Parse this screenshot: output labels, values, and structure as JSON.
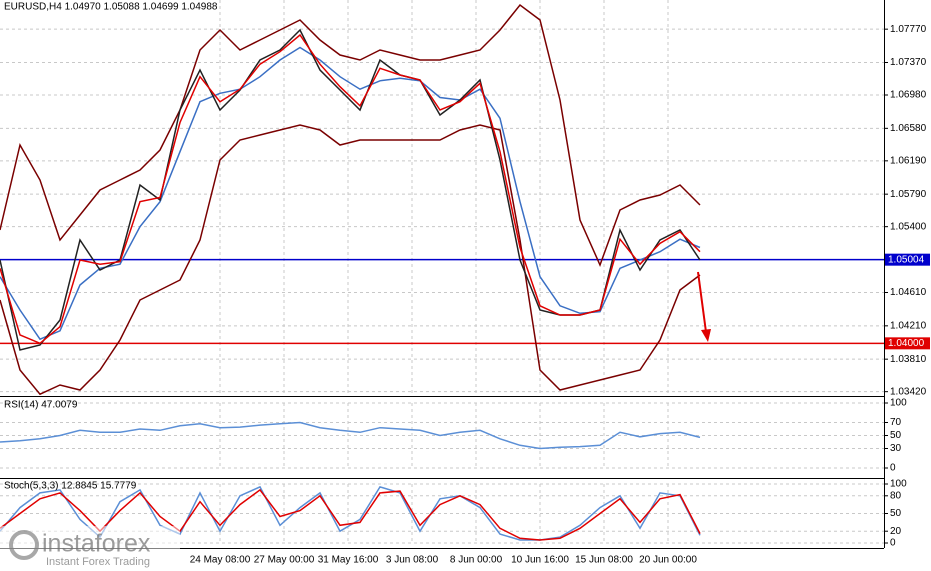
{
  "chart_data": [
    {
      "type": "line",
      "title": "EURUSD,H4  1.04970 1.05088 1.04699 1.04988",
      "x": [
        0,
        5,
        10,
        15,
        20,
        25,
        30,
        35,
        40,
        45,
        50,
        55,
        60,
        65,
        70,
        75,
        80,
        85,
        90,
        95,
        100,
        105,
        110,
        115,
        120,
        125,
        130,
        135,
        140,
        145,
        150,
        155,
        160,
        165,
        170,
        175
      ],
      "xlim": [
        0,
        221
      ],
      "xticks": [
        {
          "value": 55,
          "label": "24 May 08:00"
        },
        {
          "value": 71,
          "label": "27 May 00:00"
        },
        {
          "value": 87,
          "label": "31 May 16:00"
        },
        {
          "value": 103,
          "label": "3 Jun 08:00"
        },
        {
          "value": 119,
          "label": "8 Jun 00:00"
        },
        {
          "value": 135,
          "label": "10 Jun 16:00"
        },
        {
          "value": 151,
          "label": "15 Jun 08:00"
        },
        {
          "value": 167,
          "label": "20 Jun 00:00"
        }
      ],
      "ylim": [
        1.0338,
        1.0812
      ],
      "yticks": [
        {
          "value": 1.0777,
          "label": "1.07770"
        },
        {
          "value": 1.0737,
          "label": "1.07370"
        },
        {
          "value": 1.0698,
          "label": "1.06980"
        },
        {
          "value": 1.0658,
          "label": "1.06580"
        },
        {
          "value": 1.0619,
          "label": "1.06190"
        },
        {
          "value": 1.0579,
          "label": "1.05790"
        },
        {
          "value": 1.054,
          "label": "1.05400"
        },
        {
          "value": 1.0461,
          "label": "1.04610"
        },
        {
          "value": 1.0421,
          "label": "1.04210"
        },
        {
          "value": 1.0381,
          "label": "1.03810"
        },
        {
          "value": 1.0342,
          "label": "1.03420"
        }
      ],
      "grid": true,
      "levels": [
        {
          "value": 1.05004,
          "label": "1.05004",
          "color": "#0000cc"
        },
        {
          "value": 1.04,
          "label": "1.04000",
          "color": "#e00000"
        }
      ],
      "series": [
        {
          "color": "#7a0000",
          "values": [
            1.0536,
            1.0638,
            1.0596,
            1.0524,
            1.0554,
            1.0584,
            1.0596,
            1.0608,
            1.0632,
            1.068,
            1.0752,
            1.0776,
            1.0752,
            1.0764,
            1.0776,
            1.0788,
            1.0764,
            1.0746,
            1.074,
            1.0752,
            1.0746,
            1.074,
            1.074,
            1.0746,
            1.0752,
            1.0776,
            1.0806,
            1.0788,
            1.0692,
            1.0548,
            1.0494,
            1.056,
            1.0572,
            1.0578,
            1.059,
            1.0566
          ]
        },
        {
          "color": "#7a0000",
          "values": [
            1.0452,
            1.0368,
            1.0339,
            1.035,
            1.0344,
            1.0368,
            1.0404,
            1.0452,
            1.0464,
            1.0476,
            1.0524,
            1.062,
            1.0644,
            1.065,
            1.0656,
            1.0662,
            1.0656,
            1.0638,
            1.0644,
            1.0644,
            1.0644,
            1.0644,
            1.0644,
            1.0656,
            1.0662,
            1.0656,
            1.0524,
            1.0368,
            1.0344,
            1.035,
            1.0356,
            1.0362,
            1.0368,
            1.0404,
            1.0464,
            1.0482
          ]
        },
        {
          "color": "#3a6fc4",
          "values": [
            1.048,
            1.044,
            1.0405,
            1.0415,
            1.047,
            1.049,
            1.0495,
            1.054,
            1.057,
            1.063,
            1.069,
            1.07,
            1.0705,
            1.072,
            1.074,
            1.0755,
            1.074,
            1.072,
            1.0705,
            1.0715,
            1.0718,
            1.0715,
            1.0695,
            1.0692,
            1.0705,
            1.067,
            1.057,
            1.048,
            1.0445,
            1.0436,
            1.0438,
            1.049,
            1.05,
            1.051,
            1.0525,
            1.0515
          ]
        },
        {
          "color": "#222222",
          "values": [
            1.05,
            1.0392,
            1.0398,
            1.0428,
            1.0524,
            1.0488,
            1.05,
            1.059,
            1.0572,
            1.068,
            1.0728,
            1.068,
            1.0704,
            1.074,
            1.0752,
            1.0776,
            1.0728,
            1.0704,
            1.068,
            1.074,
            1.0722,
            1.0716,
            1.0674,
            1.0692,
            1.0716,
            1.062,
            1.05,
            1.044,
            1.0434,
            1.0434,
            1.044,
            1.0536,
            1.0488,
            1.0524,
            1.0536,
            1.05
          ]
        },
        {
          "color": "#e00000",
          "values": [
            1.049,
            1.041,
            1.04,
            1.042,
            1.05,
            1.0495,
            1.0498,
            1.057,
            1.0575,
            1.0665,
            1.072,
            1.069,
            1.0705,
            1.0735,
            1.075,
            1.077,
            1.0735,
            1.0708,
            1.0685,
            1.073,
            1.0722,
            1.0716,
            1.068,
            1.069,
            1.0712,
            1.063,
            1.0515,
            1.0445,
            1.0434,
            1.0434,
            1.044,
            1.0525,
            1.0495,
            1.052,
            1.0534,
            1.051
          ]
        }
      ]
    },
    {
      "type": "line",
      "title": "RSI(14) 47.0079",
      "ylim": [
        0,
        100
      ],
      "yticks": [
        100,
        70,
        50,
        30,
        0
      ],
      "grid": true,
      "series": [
        {
          "color": "#5b8fd6",
          "values": [
            40,
            42,
            45,
            50,
            58,
            55,
            55,
            60,
            58,
            65,
            68,
            62,
            63,
            66,
            68,
            70,
            62,
            58,
            55,
            62,
            60,
            58,
            50,
            55,
            58,
            45,
            35,
            30,
            32,
            33,
            35,
            55,
            48,
            53,
            55,
            47
          ]
        }
      ]
    },
    {
      "type": "line",
      "title": "Stoch(5,3,3) 12.8845 15.7779",
      "ylim": [
        0,
        100
      ],
      "yticks": [
        100,
        80,
        50,
        20,
        0
      ],
      "grid": true,
      "series": [
        {
          "color": "#5b8fd6",
          "values": [
            20,
            60,
            85,
            90,
            40,
            10,
            70,
            90,
            30,
            15,
            85,
            20,
            80,
            95,
            30,
            60,
            85,
            20,
            40,
            95,
            85,
            20,
            75,
            80,
            60,
            15,
            5,
            5,
            10,
            30,
            60,
            80,
            25,
            85,
            80,
            13
          ]
        },
        {
          "color": "#e00000",
          "values": [
            25,
            50,
            75,
            85,
            55,
            20,
            55,
            85,
            45,
            20,
            70,
            30,
            65,
            90,
            45,
            55,
            80,
            30,
            35,
            85,
            88,
            30,
            65,
            80,
            65,
            25,
            8,
            5,
            8,
            25,
            50,
            75,
            35,
            75,
            82,
            16
          ]
        }
      ]
    }
  ],
  "watermark": {
    "brand": "instaforex",
    "tagline": "Instant Forex Trading"
  }
}
